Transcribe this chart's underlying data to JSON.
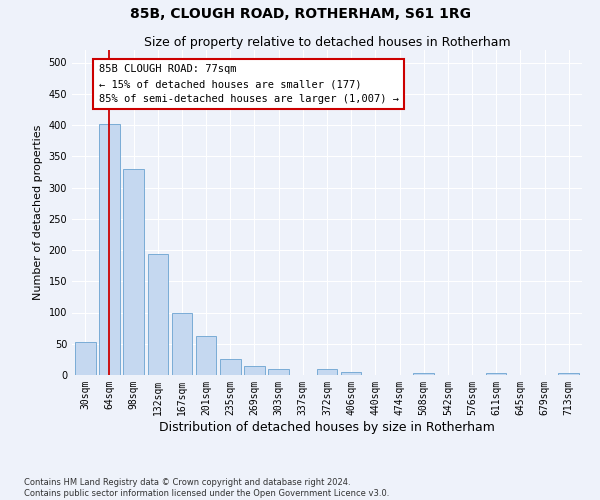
{
  "title": "85B, CLOUGH ROAD, ROTHERHAM, S61 1RG",
  "subtitle": "Size of property relative to detached houses in Rotherham",
  "xlabel": "Distribution of detached houses by size in Rotherham",
  "ylabel": "Number of detached properties",
  "bar_labels": [
    "30sqm",
    "64sqm",
    "98sqm",
    "132sqm",
    "167sqm",
    "201sqm",
    "235sqm",
    "269sqm",
    "303sqm",
    "337sqm",
    "372sqm",
    "406sqm",
    "440sqm",
    "474sqm",
    "508sqm",
    "542sqm",
    "576sqm",
    "611sqm",
    "645sqm",
    "679sqm",
    "713sqm"
  ],
  "bar_values": [
    53,
    401,
    330,
    193,
    100,
    63,
    25,
    15,
    10,
    0,
    10,
    5,
    0,
    0,
    3,
    0,
    0,
    3,
    0,
    0,
    3
  ],
  "bar_color": "#c5d8f0",
  "bar_edge_color": "#7aacd6",
  "vline_x": 1.0,
  "vline_color": "#cc0000",
  "annotation_text": "85B CLOUGH ROAD: 77sqm\n← 15% of detached houses are smaller (177)\n85% of semi-detached houses are larger (1,007) →",
  "annotation_box_color": "#ffffff",
  "annotation_box_edge": "#cc0000",
  "ylim": [
    0,
    520
  ],
  "yticks": [
    0,
    50,
    100,
    150,
    200,
    250,
    300,
    350,
    400,
    450,
    500
  ],
  "footnote": "Contains HM Land Registry data © Crown copyright and database right 2024.\nContains public sector information licensed under the Open Government Licence v3.0.",
  "bg_color": "#eef2fa",
  "grid_color": "#ffffff",
  "title_fontsize": 10,
  "subtitle_fontsize": 9,
  "xlabel_fontsize": 9,
  "ylabel_fontsize": 8,
  "tick_fontsize": 7,
  "footnote_fontsize": 6,
  "ann_fontsize": 7.5
}
